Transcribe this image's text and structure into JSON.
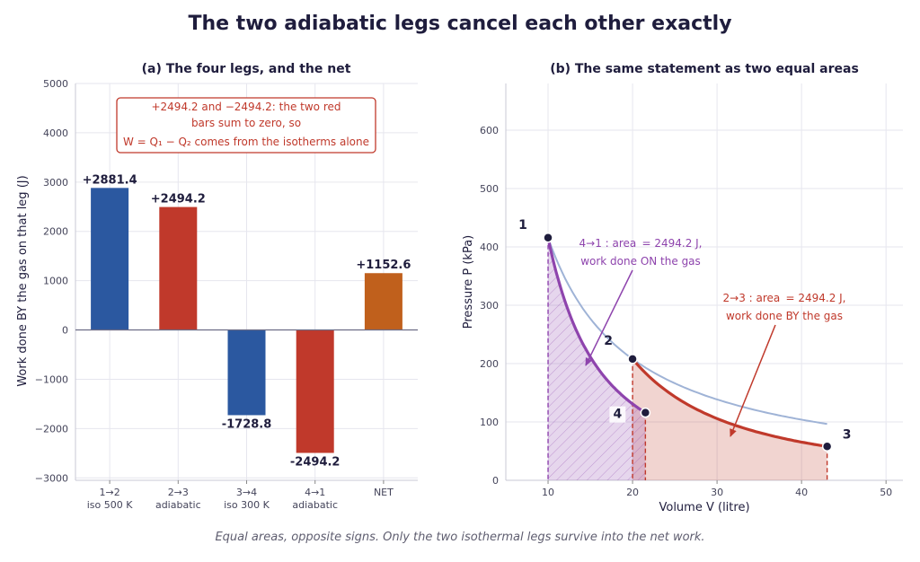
{
  "figure": {
    "title": "The two adiabatic legs cancel each other exactly",
    "footnote": "Equal areas, opposite signs. Only the two isothermal legs survive into the net work."
  },
  "colors": {
    "isotherm": "#2b58a0",
    "adiabatic": "#c0392b",
    "net": "#c0601c",
    "purple": "#8e44ad",
    "isotherm_curve": "#9fb3d6",
    "text": "#1f1d3d"
  },
  "chart_data": [
    {
      "type": "bar",
      "title": "(a) The four legs, and the net",
      "ylabel": "Work done BY the gas on that leg (J)",
      "xlabel": "",
      "ylim": [
        -3050,
        5000
      ],
      "yticks": [
        -3000,
        -2000,
        -1000,
        0,
        1000,
        2000,
        3000,
        4000,
        5000
      ],
      "ytick_labels": [
        "−3000",
        "−2000",
        "−1000",
        "0",
        "1000",
        "2000",
        "3000",
        "4000",
        "5000"
      ],
      "grid": true,
      "categories": [
        [
          "1→2",
          "iso 500 K"
        ],
        [
          "2→3",
          "adiabatic"
        ],
        [
          "3→4",
          "iso 300 K"
        ],
        [
          "4→1",
          "adiabatic"
        ],
        [
          "NET",
          ""
        ]
      ],
      "values": [
        2881.4,
        2494.2,
        -1728.8,
        -2494.2,
        1152.6
      ],
      "value_labels": [
        "+2881.4",
        "+2494.2",
        "-1728.8",
        "-2494.2",
        "+1152.6"
      ],
      "bar_colors": [
        "#2b58a0",
        "#c0392b",
        "#2b58a0",
        "#c0392b",
        "#c0601c"
      ],
      "annotation": [
        "+2494.2 and −2494.2: the two red",
        "bars sum to zero, so",
        "W = Q₁ − Q₂ comes from the isotherms alone"
      ]
    },
    {
      "type": "line",
      "title": "(b) The same statement as two equal areas",
      "xlabel": "Volume V (litre)",
      "ylabel": "Pressure P (kPa)",
      "xlim": [
        5,
        52
      ],
      "ylim": [
        0,
        680
      ],
      "xticks": [
        10,
        20,
        30,
        40,
        50
      ],
      "yticks": [
        0,
        100,
        200,
        300,
        400,
        500,
        600
      ],
      "grid": true,
      "points": [
        {
          "label": "1",
          "V": 10,
          "P": 415.7
        },
        {
          "label": "2",
          "V": 20,
          "P": 207.9
        },
        {
          "label": "3",
          "V": 43.03,
          "P": 58.0
        },
        {
          "label": "4",
          "V": 21.52,
          "P": 115.9
        }
      ],
      "series": [
        {
          "name": "",
          "kind": "isotherm-guide",
          "V": [
            10,
            43.03
          ],
          "k": 4157
        },
        {
          "name": "",
          "kind": "adiabat",
          "from": "2",
          "to": "3",
          "gamma": 1.6667
        },
        {
          "name": "",
          "kind": "adiabat",
          "from": "4",
          "to": "1",
          "gamma": 1.6667
        }
      ],
      "annotations": [
        {
          "lines": [
            "4→1 : area  = 2494.2 J,",
            "work done ON the gas"
          ],
          "color": "#8e44ad"
        },
        {
          "lines": [
            "2→3 : area  = 2494.2 J,",
            "work done BY the gas"
          ],
          "color": "#c0392b"
        }
      ]
    }
  ]
}
